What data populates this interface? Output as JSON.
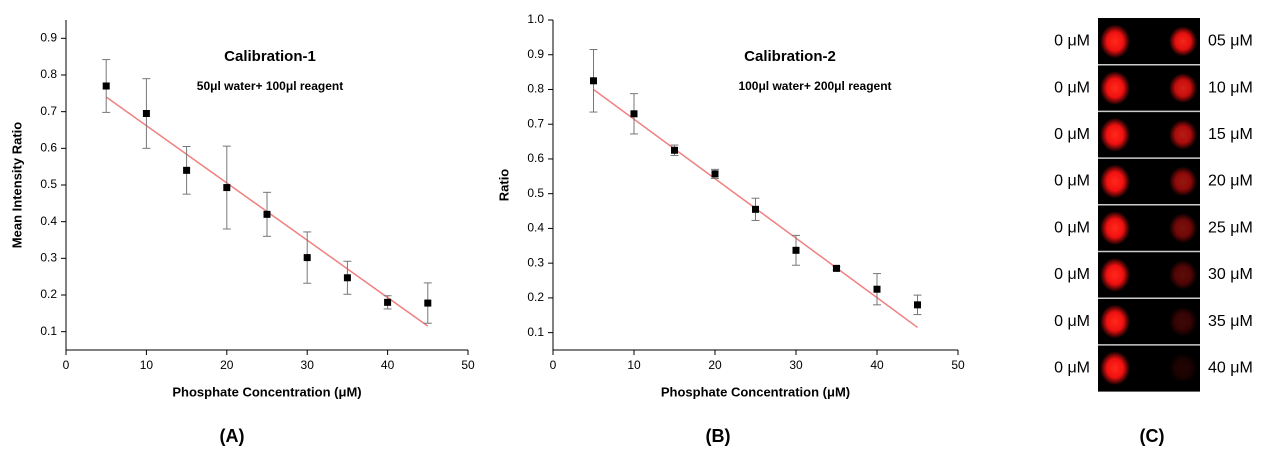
{
  "chart_data": [
    {
      "type": "scatter",
      "title": "Calibration-1",
      "subtitle": "50μl water+ 100μl reagent",
      "xlabel": "Phosphate Concentration (μM)",
      "ylabel": "Mean Intensity Ratio",
      "caption": "(A)",
      "x": [
        5,
        10,
        15,
        20,
        25,
        30,
        35,
        40,
        45
      ],
      "values": [
        0.77,
        0.695,
        0.54,
        0.493,
        0.42,
        0.302,
        0.247,
        0.18,
        0.178
      ],
      "errors": [
        0.072,
        0.095,
        0.065,
        0.113,
        0.06,
        0.07,
        0.045,
        0.018,
        0.055
      ],
      "color": "#000000",
      "fit": {
        "x": [
          5,
          45
        ],
        "y": [
          0.74,
          0.115
        ],
        "color": "#f08080"
      },
      "xlim": [
        0,
        50
      ],
      "ylim": [
        0.05,
        0.95
      ],
      "xticks": [
        0,
        10,
        20,
        30,
        40,
        50
      ],
      "yticks": [
        0.1,
        0.2,
        0.3,
        0.4,
        0.5,
        0.6,
        0.7,
        0.8,
        0.9
      ]
    },
    {
      "type": "scatter",
      "title": "Calibration-2",
      "subtitle": "100μl water+ 200μl reagent",
      "xlabel": "Phosphate Concentration (μM)",
      "ylabel": "Ratio",
      "caption": "(B)",
      "x": [
        5,
        10,
        15,
        20,
        25,
        30,
        35,
        40,
        45
      ],
      "values": [
        0.825,
        0.73,
        0.625,
        0.557,
        0.455,
        0.337,
        0.285,
        0.225,
        0.18
      ],
      "errors": [
        0.09,
        0.058,
        0.015,
        0.013,
        0.032,
        0.043,
        0.005,
        0.045,
        0.028
      ],
      "color": "#000000",
      "fit": {
        "x": [
          5,
          45
        ],
        "y": [
          0.8,
          0.115
        ],
        "color": "#f08080"
      },
      "xlim": [
        0,
        50
      ],
      "ylim": [
        0.05,
        1.0
      ],
      "xticks": [
        0,
        10,
        20,
        30,
        40,
        50
      ],
      "yticks": [
        0.1,
        0.2,
        0.3,
        0.4,
        0.5,
        0.6,
        0.7,
        0.8,
        0.9,
        {
          "value": 1,
          "label": "1.0"
        }
      ]
    }
  ],
  "panel_c": {
    "caption": "(C)",
    "rows": [
      {
        "left": "0 μM",
        "right": "05 μM"
      },
      {
        "left": "0 μM",
        "right": "10 μM"
      },
      {
        "left": "0 μM",
        "right": "15 μM"
      },
      {
        "left": "0 μM",
        "right": "20 μM"
      },
      {
        "left": "0 μM",
        "right": "25 μM"
      },
      {
        "left": "0 μM",
        "right": "30 μM"
      },
      {
        "left": "0 μM",
        "right": "35 μM"
      },
      {
        "left": "0 μM",
        "right": "40 μM"
      }
    ]
  }
}
